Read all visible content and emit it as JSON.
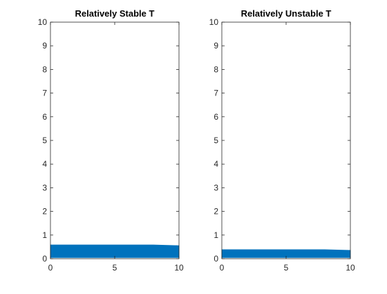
{
  "chart_data": [
    {
      "type": "area",
      "title": "Relatively Stable T",
      "xlim": [
        0,
        10
      ],
      "ylim": [
        0,
        10
      ],
      "x_ticks": [
        0,
        5,
        10
      ],
      "y_ticks": [
        0,
        1,
        2,
        3,
        4,
        5,
        6,
        7,
        8,
        9,
        10
      ],
      "grid": false,
      "legend": "none",
      "color": "#0072BD",
      "series": [
        {
          "x": [
            0,
            8,
            10
          ],
          "upper": [
            0.58,
            0.58,
            0.55
          ],
          "lower": [
            0.05,
            0.05,
            0.05
          ]
        }
      ]
    },
    {
      "type": "area",
      "title": "Relatively Unstable T",
      "xlim": [
        0,
        10
      ],
      "ylim": [
        0,
        10
      ],
      "x_ticks": [
        0,
        5,
        10
      ],
      "y_ticks": [
        0,
        1,
        2,
        3,
        4,
        5,
        6,
        7,
        8,
        9,
        10
      ],
      "grid": false,
      "legend": "none",
      "color": "#0072BD",
      "series": [
        {
          "x": [
            0,
            8,
            10
          ],
          "upper": [
            0.38,
            0.38,
            0.35
          ],
          "lower": [
            0.05,
            0.05,
            0.05
          ]
        }
      ]
    }
  ]
}
